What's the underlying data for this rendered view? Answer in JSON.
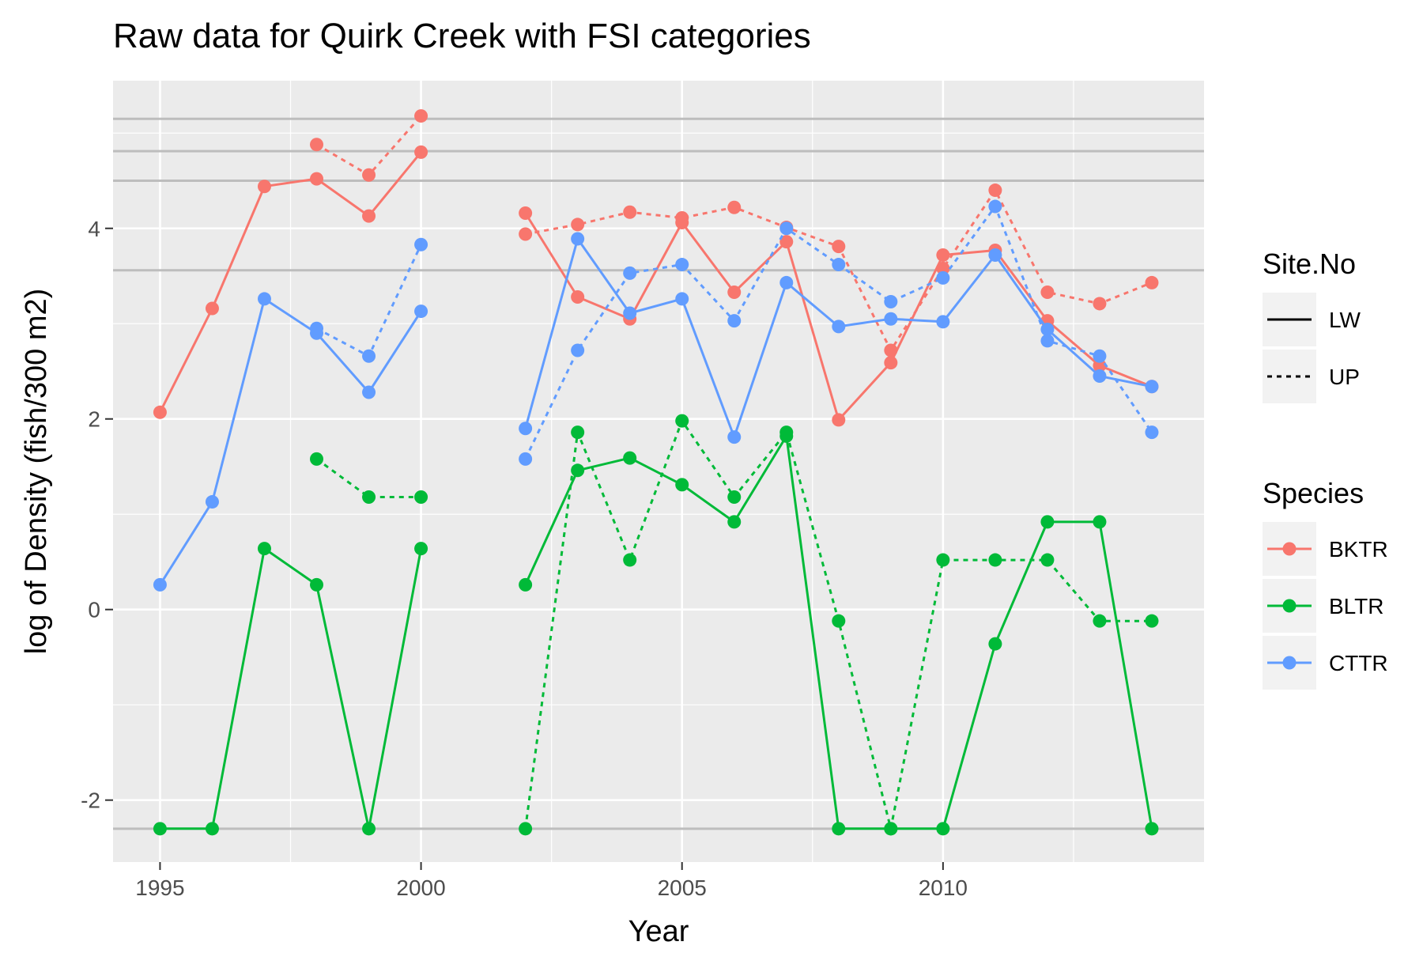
{
  "chart_data": {
    "type": "line",
    "title": "Raw data for Quirk Creek with FSI categories",
    "xlabel": "Year",
    "ylabel": "log of Density (fish/300 m2)",
    "xlim": [
      1994.1,
      2015.0
    ],
    "ylim": [
      -2.65,
      5.55
    ],
    "x_ticks": [
      1995,
      2000,
      2005,
      2010
    ],
    "y_ticks": [
      -2,
      0,
      2,
      4
    ],
    "grid": true,
    "reference_lines_y": [
      5.15,
      4.81,
      4.5,
      3.56,
      -2.3
    ],
    "legend_position": "right",
    "legends": [
      {
        "title": "Site.No",
        "items": [
          {
            "label": "LW",
            "linetype": "solid"
          },
          {
            "label": "UP",
            "linetype": "dashed"
          }
        ]
      },
      {
        "title": "Species",
        "items": [
          {
            "label": "BKTR",
            "color": "#F8766D"
          },
          {
            "label": "BLTR",
            "color": "#00BA38"
          },
          {
            "label": "CTTR",
            "color": "#619CFF"
          }
        ]
      }
    ],
    "series": [
      {
        "name": "BKTR",
        "site": "LW",
        "color": "#F8766D",
        "linetype": "solid",
        "segments": [
          [
            [
              1995,
              2.07
            ],
            [
              1996,
              3.16
            ],
            [
              1997,
              4.44
            ],
            [
              1998,
              4.52
            ],
            [
              1999,
              4.13
            ],
            [
              2000,
              4.8
            ]
          ],
          [
            [
              2002,
              4.16
            ],
            [
              2003,
              3.28
            ],
            [
              2004,
              3.05
            ],
            [
              2005,
              4.06
            ],
            [
              2006,
              3.33
            ],
            [
              2007,
              3.86
            ],
            [
              2008,
              1.99
            ],
            [
              2009,
              2.59
            ],
            [
              2010,
              3.72
            ],
            [
              2011,
              3.77
            ],
            [
              2012,
              3.03
            ],
            [
              2013,
              2.56
            ],
            [
              2014,
              2.34
            ]
          ]
        ]
      },
      {
        "name": "BKTR",
        "site": "UP",
        "color": "#F8766D",
        "linetype": "dashed",
        "segments": [
          [
            [
              1998,
              4.88
            ],
            [
              1999,
              4.56
            ],
            [
              2000,
              5.18
            ]
          ],
          [
            [
              2002,
              3.94
            ],
            [
              2003,
              4.04
            ],
            [
              2004,
              4.17
            ],
            [
              2005,
              4.11
            ],
            [
              2006,
              4.22
            ],
            [
              2007,
              4.01
            ],
            [
              2008,
              3.81
            ],
            [
              2009,
              2.72
            ],
            [
              2010,
              3.58
            ],
            [
              2011,
              4.4
            ],
            [
              2012,
              3.33
            ],
            [
              2013,
              3.21
            ],
            [
              2014,
              3.43
            ]
          ]
        ]
      },
      {
        "name": "BLTR",
        "site": "LW",
        "color": "#00BA38",
        "linetype": "solid",
        "segments": [
          [
            [
              1995,
              -2.3
            ],
            [
              1996,
              -2.3
            ],
            [
              1997,
              0.64
            ],
            [
              1998,
              0.26
            ],
            [
              1999,
              -2.3
            ],
            [
              2000,
              0.64
            ]
          ],
          [
            [
              2002,
              0.26
            ],
            [
              2003,
              1.46
            ],
            [
              2004,
              1.59
            ],
            [
              2005,
              1.31
            ],
            [
              2006,
              0.92
            ],
            [
              2007,
              1.82
            ],
            [
              2008,
              -2.3
            ],
            [
              2009,
              -2.3
            ],
            [
              2010,
              -2.3
            ],
            [
              2011,
              -0.36
            ],
            [
              2012,
              0.92
            ],
            [
              2013,
              0.92
            ],
            [
              2014,
              -2.3
            ]
          ]
        ]
      },
      {
        "name": "BLTR",
        "site": "UP",
        "color": "#00BA38",
        "linetype": "dashed",
        "segments": [
          [
            [
              1998,
              1.58
            ],
            [
              1999,
              1.18
            ],
            [
              2000,
              1.18
            ]
          ],
          [
            [
              2002,
              -2.3
            ],
            [
              2003,
              1.86
            ],
            [
              2004,
              0.52
            ],
            [
              2005,
              1.98
            ],
            [
              2006,
              1.18
            ],
            [
              2007,
              1.86
            ],
            [
              2008,
              -0.12
            ],
            [
              2009,
              -2.3
            ],
            [
              2010,
              0.52
            ],
            [
              2011,
              0.52
            ],
            [
              2012,
              0.52
            ],
            [
              2013,
              -0.12
            ],
            [
              2014,
              -0.12
            ]
          ]
        ]
      },
      {
        "name": "CTTR",
        "site": "LW",
        "color": "#619CFF",
        "linetype": "solid",
        "segments": [
          [
            [
              1995,
              0.26
            ],
            [
              1996,
              1.13
            ],
            [
              1997,
              3.26
            ],
            [
              1998,
              2.9
            ],
            [
              1999,
              2.28
            ],
            [
              2000,
              3.13
            ]
          ],
          [
            [
              2002,
              1.9
            ],
            [
              2003,
              3.89
            ],
            [
              2004,
              3.11
            ],
            [
              2005,
              3.26
            ],
            [
              2006,
              1.81
            ],
            [
              2007,
              3.43
            ],
            [
              2008,
              2.97
            ],
            [
              2009,
              3.05
            ],
            [
              2010,
              3.02
            ],
            [
              2011,
              3.72
            ],
            [
              2012,
              2.94
            ],
            [
              2013,
              2.45
            ],
            [
              2014,
              2.34
            ]
          ]
        ]
      },
      {
        "name": "CTTR",
        "site": "UP",
        "color": "#619CFF",
        "linetype": "dashed",
        "segments": [
          [
            [
              1998,
              2.95
            ],
            [
              1999,
              2.66
            ],
            [
              2000,
              3.83
            ]
          ],
          [
            [
              2002,
              1.58
            ],
            [
              2003,
              2.72
            ],
            [
              2004,
              3.53
            ],
            [
              2005,
              3.62
            ],
            [
              2006,
              3.03
            ],
            [
              2007,
              4.0
            ],
            [
              2008,
              3.62
            ],
            [
              2009,
              3.23
            ],
            [
              2010,
              3.48
            ],
            [
              2011,
              4.23
            ],
            [
              2012,
              2.82
            ],
            [
              2013,
              2.66
            ],
            [
              2014,
              1.86
            ]
          ]
        ]
      }
    ]
  }
}
